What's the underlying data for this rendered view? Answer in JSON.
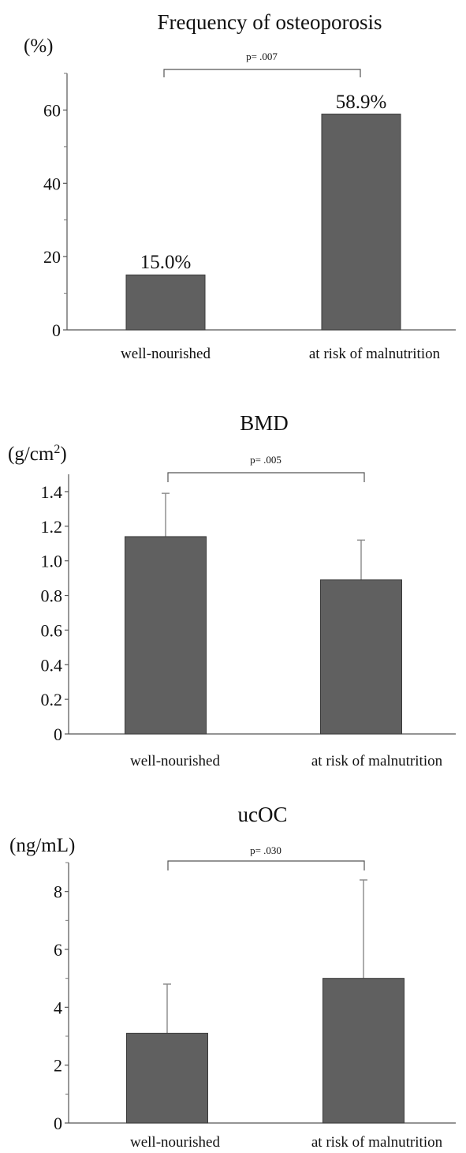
{
  "chart_data": [
    {
      "type": "bar",
      "title": "Frequency of osteoporosis",
      "ylabel": "(%)",
      "categories": [
        "well-nourished",
        "at risk of malnutrition"
      ],
      "values": [
        15.0,
        58.9
      ],
      "data_labels": [
        "15.0%",
        "58.9%"
      ],
      "ylim": [
        0,
        70
      ],
      "yticks": [
        0,
        20,
        40,
        60
      ],
      "ytick_labels": [
        "0",
        "20",
        "40",
        "60"
      ],
      "minor_yticks": [
        10,
        30,
        50,
        70
      ],
      "significance": "p= .007",
      "bar_color": "#606060"
    },
    {
      "type": "bar",
      "title": "BMD",
      "ylabel_base": "(g/cm",
      "ylabel_sup": "2",
      "ylabel_end": ")",
      "categories": [
        "well-nourished",
        "at risk of malnutrition"
      ],
      "values": [
        1.14,
        0.89
      ],
      "error_upper": [
        1.39,
        1.12
      ],
      "ylim": [
        0,
        1.5
      ],
      "yticks": [
        0,
        0.2,
        0.4,
        0.6,
        0.8,
        1.0,
        1.2,
        1.4
      ],
      "ytick_labels": [
        "0",
        "0.2",
        "0.4",
        "0.6",
        "0.8",
        "1.0",
        "1.2",
        "1.4"
      ],
      "significance": "p= .005",
      "bar_color": "#606060"
    },
    {
      "type": "bar",
      "title": "ucOC",
      "ylabel": "(ng/mL)",
      "categories": [
        "well-nourished",
        "at risk of malnutrition"
      ],
      "values": [
        3.1,
        5.0
      ],
      "error_upper": [
        4.8,
        8.4
      ],
      "ylim": [
        0,
        9
      ],
      "yticks": [
        0,
        2,
        4,
        6,
        8
      ],
      "ytick_labels": [
        "0",
        "2",
        "4",
        "6",
        "8"
      ],
      "minor_yticks": [
        1,
        3,
        5,
        7,
        9
      ],
      "significance": "p= .030",
      "bar_color": "#606060"
    }
  ]
}
